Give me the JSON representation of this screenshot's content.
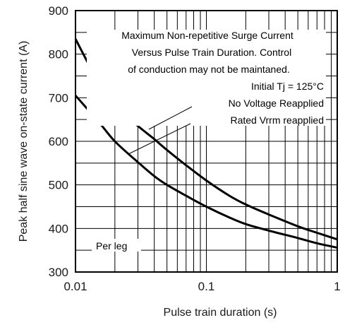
{
  "chart_data": {
    "type": "line",
    "title": "",
    "xlabel": "Pulse train duration (s)",
    "ylabel": "Peak half sine wave on-state current (A)",
    "xscale": "log",
    "xlim": [
      0.01,
      1
    ],
    "ylim": [
      300,
      900
    ],
    "x_ticks": [
      "0.01",
      "0.1",
      "1"
    ],
    "y_ticks": [
      "300",
      "400",
      "500",
      "600",
      "700",
      "800",
      "900"
    ],
    "grid": true,
    "series": [
      {
        "name": "No Voltage Reapplied",
        "x": [
          0.01,
          0.015,
          0.02,
          0.03,
          0.04,
          0.05,
          0.07,
          0.1,
          0.15,
          0.2,
          0.3,
          0.5,
          0.7,
          1
        ],
        "y": [
          835,
          735,
          680,
          635,
          605,
          580,
          545,
          510,
          475,
          455,
          432,
          405,
          390,
          375
        ]
      },
      {
        "name": "Rated Vrrm reapplied",
        "x": [
          0.01,
          0.015,
          0.02,
          0.03,
          0.04,
          0.05,
          0.07,
          0.1,
          0.15,
          0.2,
          0.3,
          0.5,
          0.7,
          1
        ],
        "y": [
          705,
          645,
          600,
          552,
          520,
          500,
          475,
          450,
          425,
          410,
          395,
          378,
          366,
          356
        ]
      }
    ],
    "annotations": [
      "Maximum Non-repetitive Surge Current",
      "Versus Pulse Train Duration. Control",
      "of conduction may not be maintaned.",
      "Initial Tj = 125°C",
      "No Voltage Reapplied",
      "Rated Vrrm reapplied",
      "Per leg"
    ]
  }
}
